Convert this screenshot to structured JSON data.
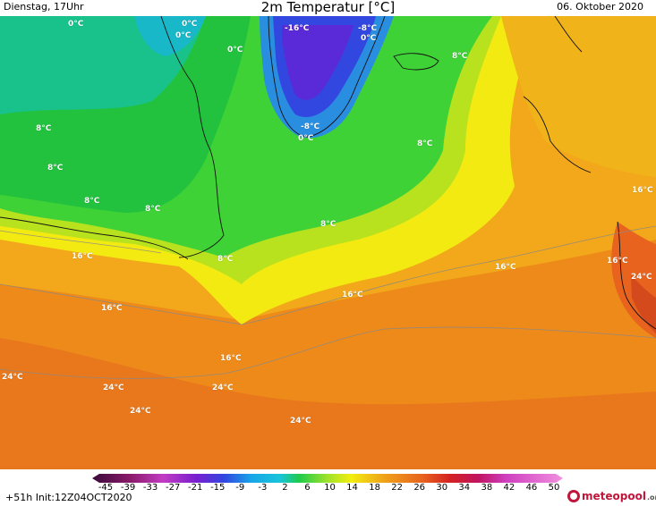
{
  "header": {
    "time_label": "Dienstag, 17Uhr",
    "title": "2m Temperatur [°C]",
    "date_label": "06. Oktober 2020"
  },
  "map_labels": [
    {
      "text": "0°C"
    },
    {
      "text": "0°C"
    },
    {
      "text": "0°C"
    },
    {
      "text": "0°C"
    },
    {
      "text": "-16°C"
    },
    {
      "text": "-8°C"
    },
    {
      "text": "0°C"
    },
    {
      "text": "8°C"
    },
    {
      "text": "-8°C"
    },
    {
      "text": "0°C"
    },
    {
      "text": "8°C"
    },
    {
      "text": "8°C"
    },
    {
      "text": "8°C"
    },
    {
      "text": "8°C"
    },
    {
      "text": "8°C"
    },
    {
      "text": "8°C"
    },
    {
      "text": "8°C"
    },
    {
      "text": "16°C"
    },
    {
      "text": "16°C"
    },
    {
      "text": "16°C"
    },
    {
      "text": "16°C"
    },
    {
      "text": "16°C"
    },
    {
      "text": "16°C"
    },
    {
      "text": "16°C"
    },
    {
      "text": "24°C"
    },
    {
      "text": "24°C"
    },
    {
      "text": "24°C"
    },
    {
      "text": "24°C"
    },
    {
      "text": "24°C"
    },
    {
      "text": "24°C"
    }
  ],
  "legend": {
    "ticks": [
      "-45",
      "-39",
      "-33",
      "-27",
      "-21",
      "-15",
      "-9",
      "-3",
      "2",
      "6",
      "10",
      "14",
      "18",
      "22",
      "26",
      "30",
      "34",
      "38",
      "42",
      "46",
      "50"
    ],
    "colors": {
      "very_cold": "#3a0a3a",
      "magenta": "#c23cc2",
      "purple": "#7a1fd0",
      "blue": "#3246e0",
      "cyan": "#18c4d8",
      "green": "#1fcb4a",
      "lime": "#a0e22a",
      "yellow": "#f2ee10",
      "orange": "#f0a21a",
      "dark_orange": "#e8641e",
      "red": "#d42222",
      "hot_pink": "#f090e0"
    }
  },
  "footer": {
    "forecast_step": "+51h",
    "init_label": "Init:12Z04OCT2020",
    "logo_text": "meteopool",
    "logo_tld": ".org"
  }
}
